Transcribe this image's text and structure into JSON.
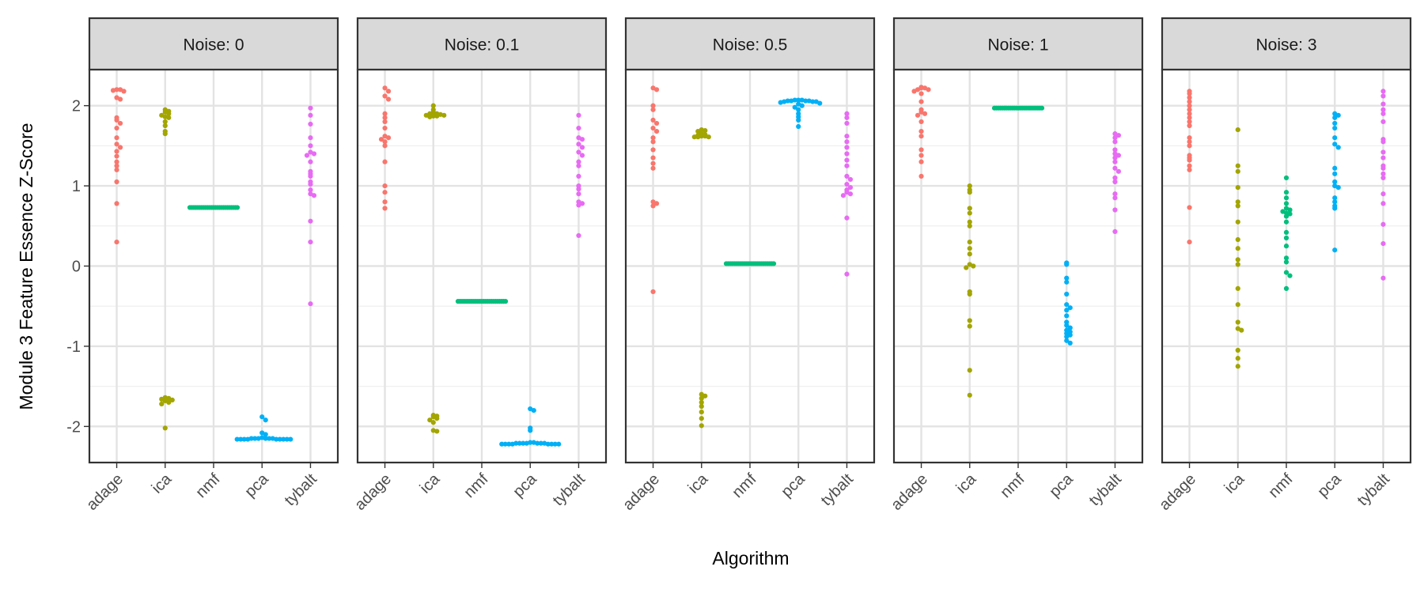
{
  "chart_data": {
    "type": "scatter",
    "xlabel": "Algorithm",
    "ylabel": "Module 3 Feature Essence Z-Score",
    "ylim": [
      -2.45,
      2.45
    ],
    "y_ticks": [
      "2",
      "1",
      "0",
      "-1",
      "-2"
    ],
    "categories": [
      "adage",
      "ica",
      "nmf",
      "pca",
      "tybalt"
    ],
    "grid": true,
    "colors": {
      "adage": "#F8766D",
      "ica": "#A3A500",
      "nmf": "#00BF7D",
      "pca": "#00B0F6",
      "tybalt": "#E76BF3"
    },
    "panels": [
      {
        "label": "Noise: 0",
        "series": [
          {
            "category": "adage",
            "values": [
              2.2,
              2.2,
              2.19,
              2.18,
              2.1,
              2.08,
              1.85,
              1.82,
              1.78,
              1.72,
              1.6,
              1.52,
              1.48,
              1.43,
              1.37,
              1.3,
              1.25,
              1.2,
              1.05,
              0.78,
              0.3
            ]
          },
          {
            "category": "ica",
            "values": [
              1.95,
              1.93,
              1.92,
              1.9,
              1.88,
              1.86,
              1.85,
              1.8,
              1.75,
              1.68,
              1.65,
              -1.64,
              -1.65,
              -1.66,
              -1.67,
              -1.68,
              -1.7,
              -1.72,
              -2.02
            ]
          },
          {
            "category": "nmf",
            "values": [
              0.73,
              0.73,
              0.73,
              0.73,
              0.73,
              0.73,
              0.73,
              0.73,
              0.73,
              0.73,
              0.73,
              0.73,
              0.73,
              0.73,
              0.73,
              0.73,
              0.73,
              0.73,
              0.73,
              0.73,
              0.73,
              0.73,
              0.73,
              0.73,
              0.73
            ]
          },
          {
            "category": "pca",
            "values": [
              -1.88,
              -1.92,
              -2.08,
              -2.1,
              -2.14,
              -2.15,
              -2.15,
              -2.15,
              -2.15,
              -2.15,
              -2.15,
              -2.16,
              -2.16,
              -2.16,
              -2.16,
              -2.16,
              -2.16,
              -2.16,
              -2.16,
              -2.16
            ]
          },
          {
            "category": "tybalt",
            "values": [
              1.97,
              1.88,
              1.77,
              1.6,
              1.5,
              1.42,
              1.4,
              1.38,
              1.3,
              1.18,
              1.15,
              1.12,
              1.05,
              1.02,
              0.95,
              0.9,
              0.88,
              0.56,
              0.3,
              -0.47
            ]
          }
        ]
      },
      {
        "label": "Noise: 0.1",
        "series": [
          {
            "category": "adage",
            "values": [
              2.22,
              2.18,
              2.12,
              2.08,
              1.9,
              1.85,
              1.8,
              1.72,
              1.62,
              1.6,
              1.58,
              1.55,
              1.5,
              1.3,
              1.0,
              0.92,
              0.8,
              0.72
            ]
          },
          {
            "category": "ica",
            "values": [
              2.0,
              1.95,
              1.92,
              1.9,
              1.9,
              1.89,
              1.88,
              1.88,
              1.87,
              1.87,
              1.86,
              -1.86,
              -1.87,
              -1.88,
              -1.9,
              -1.92,
              -1.95,
              -2.05,
              -2.06
            ]
          },
          {
            "category": "nmf",
            "values": [
              -0.44,
              -0.44,
              -0.44,
              -0.44,
              -0.44,
              -0.44,
              -0.44,
              -0.44,
              -0.44,
              -0.44,
              -0.44,
              -0.44,
              -0.44,
              -0.44,
              -0.44,
              -0.44,
              -0.44,
              -0.44,
              -0.44,
              -0.44,
              -0.44,
              -0.44,
              -0.44,
              -0.44,
              -0.44
            ]
          },
          {
            "category": "pca",
            "values": [
              -1.78,
              -1.8,
              -2.02,
              -2.05,
              -2.2,
              -2.2,
              -2.21,
              -2.21,
              -2.21,
              -2.21,
              -2.21,
              -2.21,
              -2.21,
              -2.22,
              -2.22,
              -2.22,
              -2.22,
              -2.22,
              -2.22,
              -2.22,
              -2.22
            ]
          },
          {
            "category": "tybalt",
            "values": [
              1.88,
              1.72,
              1.6,
              1.58,
              1.52,
              1.48,
              1.42,
              1.38,
              1.3,
              1.25,
              1.12,
              1.0,
              0.96,
              0.9,
              0.8,
              0.78,
              0.76,
              0.38
            ]
          }
        ]
      },
      {
        "label": "Noise: 0.5",
        "series": [
          {
            "category": "adage",
            "values": [
              2.22,
              2.2,
              2.0,
              1.95,
              1.82,
              1.78,
              1.72,
              1.68,
              1.6,
              1.55,
              1.45,
              1.35,
              1.28,
              1.22,
              0.8,
              0.78,
              0.75,
              -0.32
            ]
          },
          {
            "category": "ica",
            "values": [
              1.7,
              1.69,
              1.68,
              1.65,
              1.64,
              1.63,
              1.62,
              1.62,
              1.61,
              1.61,
              1.61,
              -1.6,
              -1.62,
              -1.65,
              -1.7,
              -1.75,
              -1.82,
              -1.9,
              -1.99
            ]
          },
          {
            "category": "nmf",
            "values": [
              0.03,
              0.03,
              0.03,
              0.03,
              0.03,
              0.03,
              0.03,
              0.03,
              0.03,
              0.03,
              0.03,
              0.03,
              0.03,
              0.03,
              0.03,
              0.03,
              0.03,
              0.03,
              0.03,
              0.03,
              0.03,
              0.03,
              0.03,
              0.03,
              0.03
            ]
          },
          {
            "category": "pca",
            "values": [
              2.07,
              2.07,
              2.07,
              2.06,
              2.06,
              2.06,
              2.06,
              2.05,
              2.05,
              2.05,
              2.04,
              2.03,
              2.02,
              2.0,
              1.98,
              1.95,
              1.9,
              1.86,
              1.82,
              1.74
            ]
          },
          {
            "category": "tybalt",
            "values": [
              1.9,
              1.85,
              1.78,
              1.62,
              1.55,
              1.48,
              1.4,
              1.32,
              1.25,
              1.12,
              1.08,
              1.02,
              0.98,
              0.95,
              0.92,
              0.9,
              0.88,
              0.6,
              -0.1
            ]
          }
        ]
      },
      {
        "label": "Noise: 1",
        "series": [
          {
            "category": "adage",
            "values": [
              2.23,
              2.22,
              2.22,
              2.2,
              2.2,
              2.18,
              2.15,
              2.05,
              1.95,
              1.92,
              1.9,
              1.88,
              1.8,
              1.68,
              1.62,
              1.45,
              1.38,
              1.3,
              1.12
            ]
          },
          {
            "category": "ica",
            "values": [
              1.0,
              0.95,
              0.92,
              0.72,
              0.66,
              0.55,
              0.5,
              0.3,
              0.22,
              0.15,
              0.02,
              0.0,
              -0.02,
              -0.32,
              -0.35,
              -0.68,
              -0.75,
              -1.3,
              -1.61
            ]
          },
          {
            "category": "nmf",
            "values": [
              1.97,
              1.97,
              1.97,
              1.97,
              1.97,
              1.97,
              1.97,
              1.97,
              1.97,
              1.97,
              1.97,
              1.97,
              1.97,
              1.97,
              1.97,
              1.97,
              1.97,
              1.97,
              1.97,
              1.97,
              1.97,
              1.97,
              1.97,
              1.97,
              1.97
            ]
          },
          {
            "category": "pca",
            "values": [
              0.04,
              0.02,
              -0.15,
              -0.2,
              -0.35,
              -0.48,
              -0.52,
              -0.55,
              -0.62,
              -0.7,
              -0.74,
              -0.77,
              -0.8,
              -0.82,
              -0.84,
              -0.86,
              -0.88,
              -0.93,
              -0.96
            ]
          },
          {
            "category": "tybalt",
            "values": [
              1.65,
              1.63,
              1.6,
              1.55,
              1.45,
              1.4,
              1.38,
              1.35,
              1.3,
              1.22,
              1.18,
              1.1,
              1.05,
              0.9,
              0.85,
              0.7,
              0.43
            ]
          }
        ]
      },
      {
        "label": "Noise: 3",
        "series": [
          {
            "category": "adage",
            "values": [
              2.18,
              2.15,
              2.1,
              2.05,
              2.0,
              1.95,
              1.9,
              1.85,
              1.8,
              1.75,
              1.6,
              1.55,
              1.5,
              1.38,
              1.35,
              1.32,
              1.25,
              1.2,
              0.73,
              0.3
            ]
          },
          {
            "category": "ica",
            "values": [
              1.7,
              1.25,
              1.18,
              0.98,
              0.8,
              0.75,
              0.55,
              0.33,
              0.22,
              0.08,
              0.02,
              -0.28,
              -0.48,
              -0.7,
              -0.78,
              -0.8,
              -1.05,
              -1.15,
              -1.25
            ]
          },
          {
            "category": "nmf",
            "values": [
              1.1,
              0.92,
              0.85,
              0.78,
              0.72,
              0.7,
              0.68,
              0.66,
              0.65,
              0.62,
              0.55,
              0.42,
              0.35,
              0.25,
              0.1,
              0.05,
              -0.08,
              -0.12,
              -0.28
            ]
          },
          {
            "category": "pca",
            "values": [
              1.9,
              1.88,
              1.85,
              1.78,
              1.72,
              1.6,
              1.52,
              1.48,
              1.22,
              1.15,
              1.05,
              1.0,
              0.98,
              0.85,
              0.8,
              0.75,
              0.72,
              0.2
            ]
          },
          {
            "category": "tybalt",
            "values": [
              2.18,
              2.12,
              2.02,
              1.95,
              1.9,
              1.8,
              1.58,
              1.55,
              1.42,
              1.35,
              1.25,
              1.22,
              1.15,
              1.1,
              0.9,
              0.78,
              0.52,
              0.28,
              -0.15
            ]
          }
        ]
      }
    ]
  }
}
